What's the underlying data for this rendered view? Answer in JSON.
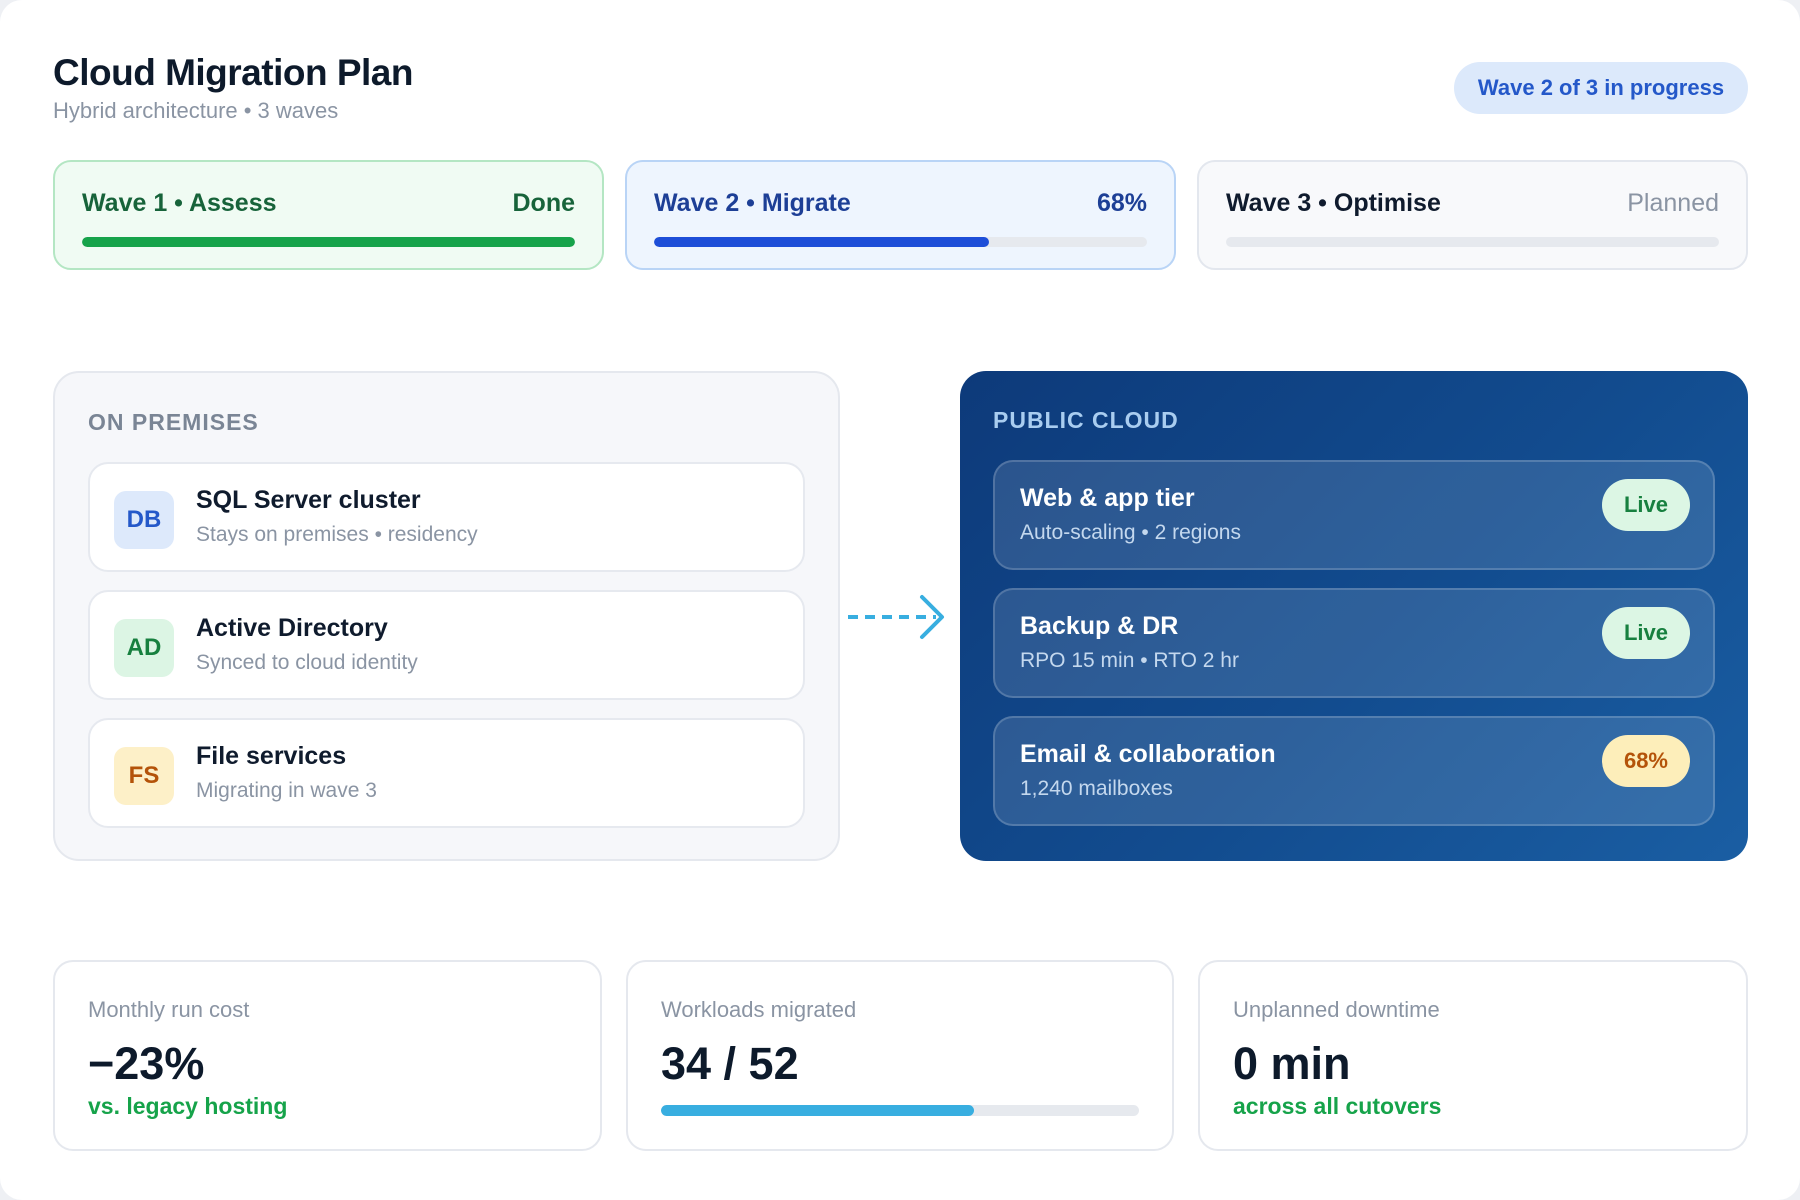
{
  "header": {
    "title": "Cloud Migration Plan",
    "subtitle": "Hybrid architecture • 3 waves",
    "status": "Wave 2 of 3 in progress"
  },
  "waves": [
    {
      "name": "Wave 1 • Assess",
      "state": "Done",
      "progress": 1.0,
      "color": "#16a34a"
    },
    {
      "name": "Wave 2 • Migrate",
      "state": "68%",
      "progress": 0.68,
      "color": "#1d4ed8"
    },
    {
      "name": "Wave 3 • Optimise",
      "state": "Planned",
      "progress": 0.0,
      "color": "#e6e9ee"
    }
  ],
  "on_premises": {
    "label": "ON PREMISES",
    "items": [
      {
        "badge": "DB",
        "name": "SQL Server cluster",
        "desc": "Stays on premises • residency"
      },
      {
        "badge": "AD",
        "name": "Active Directory",
        "desc": "Synced to cloud identity"
      },
      {
        "badge": "FS",
        "name": "File services",
        "desc": "Migrating in wave 3"
      }
    ]
  },
  "public_cloud": {
    "label": "PUBLIC CLOUD",
    "items": [
      {
        "name": "Web & app tier",
        "desc": "Auto-scaling • 2 regions",
        "tag": "Live"
      },
      {
        "name": "Backup & DR",
        "desc": "RPO 15 min • RTO 2 hr",
        "tag": "Live"
      },
      {
        "name": "Email & collaboration",
        "desc": "1,240 mailboxes",
        "tag": "68%"
      }
    ]
  },
  "icons": {
    "migration_arrow": "dashed-arrow-right-icon"
  },
  "stats": [
    {
      "label": "Monthly run cost",
      "value": "−23%",
      "note": "vs. legacy hosting"
    },
    {
      "label": "Workloads migrated",
      "value": "34 / 52",
      "progress": 0.654
    },
    {
      "label": "Unplanned downtime",
      "value": "0 min",
      "note": "across all cutovers"
    }
  ],
  "colors": {
    "accent_blue": "#1d4ed8",
    "success_green": "#16a34a",
    "cloud_panel": "#124c8f",
    "progress_cyan": "#38aee0"
  }
}
